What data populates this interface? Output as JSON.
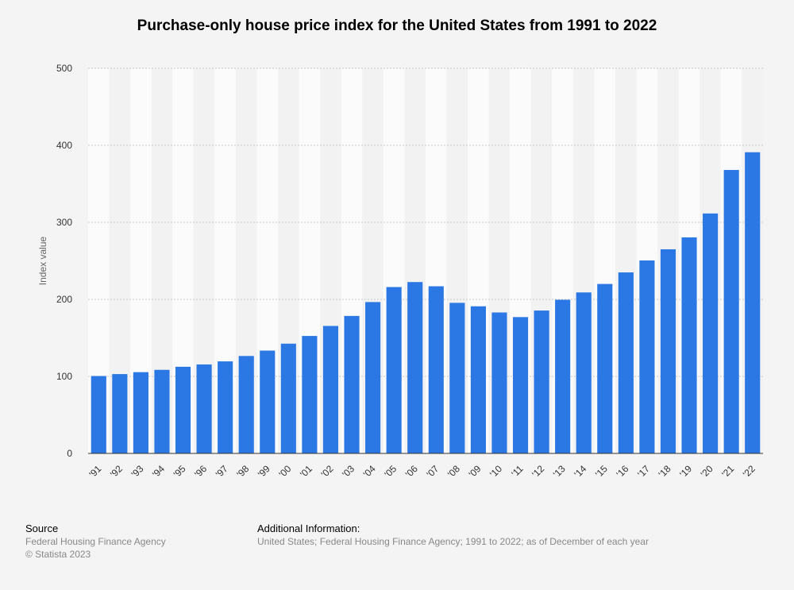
{
  "title": "Purchase-only house price index for the United States from 1991 to 2022",
  "chart_data": {
    "type": "bar",
    "title": "Purchase-only house price index for the United States from 1991 to 2022",
    "categories": [
      "'91",
      "'92",
      "'93",
      "'94",
      "'95",
      "'96",
      "'97",
      "'98",
      "'99",
      "'00",
      "'01",
      "'02",
      "'03",
      "'04",
      "'05",
      "'06",
      "'07",
      "'08",
      "'09",
      "'10",
      "'11",
      "'12",
      "'13",
      "'14",
      "'15",
      "'16",
      "'17",
      "'18",
      "'19",
      "'20",
      "'21",
      "'22"
    ],
    "values": [
      100.5,
      103,
      105.5,
      108.5,
      112.5,
      115.5,
      119.5,
      126.5,
      133.5,
      142.5,
      152.5,
      165.5,
      178.5,
      196.5,
      216,
      222.5,
      217,
      195.5,
      191,
      183,
      177,
      185.5,
      199.5,
      209,
      220,
      235,
      250.5,
      265,
      280.5,
      311.5,
      368,
      391
    ],
    "ylabel": "Index value",
    "xlabel": "",
    "ylim": [
      0,
      500
    ],
    "yticks": [
      0,
      100,
      200,
      300,
      400,
      500
    ],
    "grid": true,
    "bar_color": "#2b78e4"
  },
  "footer": {
    "source_heading": "Source",
    "source_lines": [
      "Federal Housing Finance Agency",
      "© Statista 2023"
    ],
    "info_heading": "Additional Information:",
    "info_text": "United States; Federal Housing Finance Agency; 1991 to 2022; as of December of each year"
  }
}
